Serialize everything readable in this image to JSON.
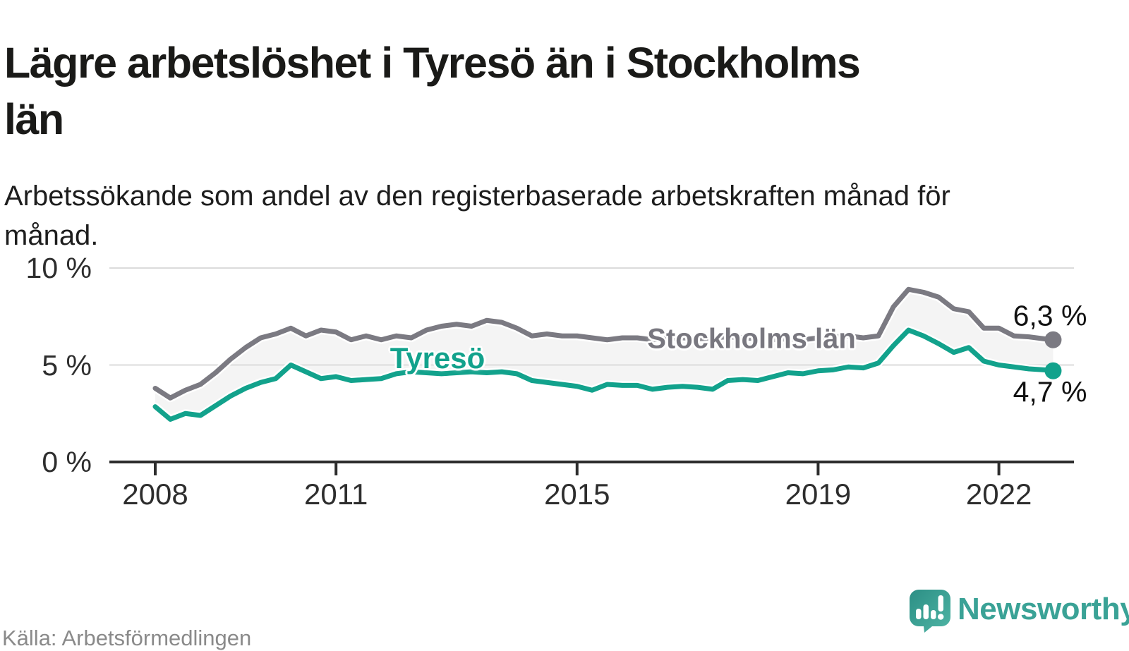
{
  "header": {
    "title": "Lägre arbetslöshet i Tyresö än i Stockholms län",
    "subtitle": "Arbetssökande som andel av den registerbaserade arbetskraften månad för månad."
  },
  "footer": {
    "source": "Källa: Arbetsförmedlingen",
    "brand": "Newsworthy"
  },
  "colors": {
    "tyreso": "#12a28c",
    "stockholm": "#7b7a82",
    "band": "#f4f4f4",
    "grid": "#dbdbdb",
    "axis": "#2d2d2d",
    "brand_teal": "#3aa296"
  },
  "chart_data": {
    "type": "line",
    "title": "Lägre arbetslöshet i Tyresö än i Stockholms län",
    "xlabel": "",
    "ylabel": "",
    "x_range_years": [
      2008,
      2023
    ],
    "ylim": [
      0,
      10.9
    ],
    "grid": "horizontal",
    "yticks": [
      {
        "label": "10 %",
        "value": 10
      },
      {
        "label": "5 %",
        "value": 5
      },
      {
        "label": "0 %",
        "value": 0
      }
    ],
    "xticks": [
      {
        "label": "2008",
        "year": 2008
      },
      {
        "label": "2011",
        "year": 2011
      },
      {
        "label": "2015",
        "year": 2015
      },
      {
        "label": "2019",
        "year": 2019
      },
      {
        "label": "2022",
        "year": 2022
      }
    ],
    "x": [
      2008.0,
      2008.25,
      2008.5,
      2008.75,
      2009.0,
      2009.25,
      2009.5,
      2009.75,
      2010.0,
      2010.25,
      2010.5,
      2010.75,
      2011.0,
      2011.25,
      2011.5,
      2011.75,
      2012.0,
      2012.25,
      2012.5,
      2012.75,
      2013.0,
      2013.25,
      2013.5,
      2013.75,
      2014.0,
      2014.25,
      2014.5,
      2014.75,
      2015.0,
      2015.25,
      2015.5,
      2015.75,
      2016.0,
      2016.25,
      2016.5,
      2016.75,
      2017.0,
      2017.25,
      2017.5,
      2017.75,
      2018.0,
      2018.25,
      2018.5,
      2018.75,
      2019.0,
      2019.25,
      2019.5,
      2019.75,
      2020.0,
      2020.25,
      2020.5,
      2020.75,
      2021.0,
      2021.25,
      2021.5,
      2021.75,
      2022.0,
      2022.25,
      2022.5,
      2022.75,
      2022.9
    ],
    "series": [
      {
        "name": "Stockholms län",
        "color": "#7b7a82",
        "end_label": "6,3 %",
        "end_value": 6.3,
        "values": [
          3.8,
          3.3,
          3.7,
          4.0,
          4.6,
          5.3,
          5.9,
          6.4,
          6.6,
          6.9,
          6.5,
          6.8,
          6.7,
          6.3,
          6.5,
          6.3,
          6.5,
          6.4,
          6.8,
          7.0,
          7.1,
          7.0,
          7.3,
          7.2,
          6.9,
          6.5,
          6.6,
          6.5,
          6.5,
          6.4,
          6.3,
          6.4,
          6.4,
          6.3,
          6.35,
          6.4,
          6.35,
          6.4,
          6.45,
          6.4,
          6.35,
          6.3,
          6.35,
          6.3,
          6.4,
          6.45,
          6.5,
          6.4,
          6.5,
          8.0,
          8.9,
          8.75,
          8.5,
          7.9,
          7.75,
          6.9,
          6.9,
          6.5,
          6.45,
          6.35,
          6.3
        ]
      },
      {
        "name": "Tyresö",
        "color": "#12a28c",
        "end_label": "4,7 %",
        "end_value": 4.7,
        "values": [
          2.85,
          2.2,
          2.5,
          2.4,
          2.9,
          3.4,
          3.8,
          4.1,
          4.3,
          5.0,
          4.65,
          4.3,
          4.4,
          4.2,
          4.25,
          4.3,
          4.55,
          4.65,
          4.6,
          4.55,
          4.6,
          4.65,
          4.6,
          4.65,
          4.55,
          4.2,
          4.1,
          4.0,
          3.9,
          3.7,
          4.0,
          3.95,
          3.95,
          3.75,
          3.85,
          3.9,
          3.85,
          3.75,
          4.2,
          4.25,
          4.2,
          4.4,
          4.6,
          4.55,
          4.7,
          4.75,
          4.9,
          4.85,
          5.1,
          6.0,
          6.8,
          6.5,
          6.1,
          5.65,
          5.9,
          5.2,
          5.0,
          4.9,
          4.8,
          4.75,
          4.7
        ]
      }
    ],
    "legend_position": "inline-labels"
  }
}
